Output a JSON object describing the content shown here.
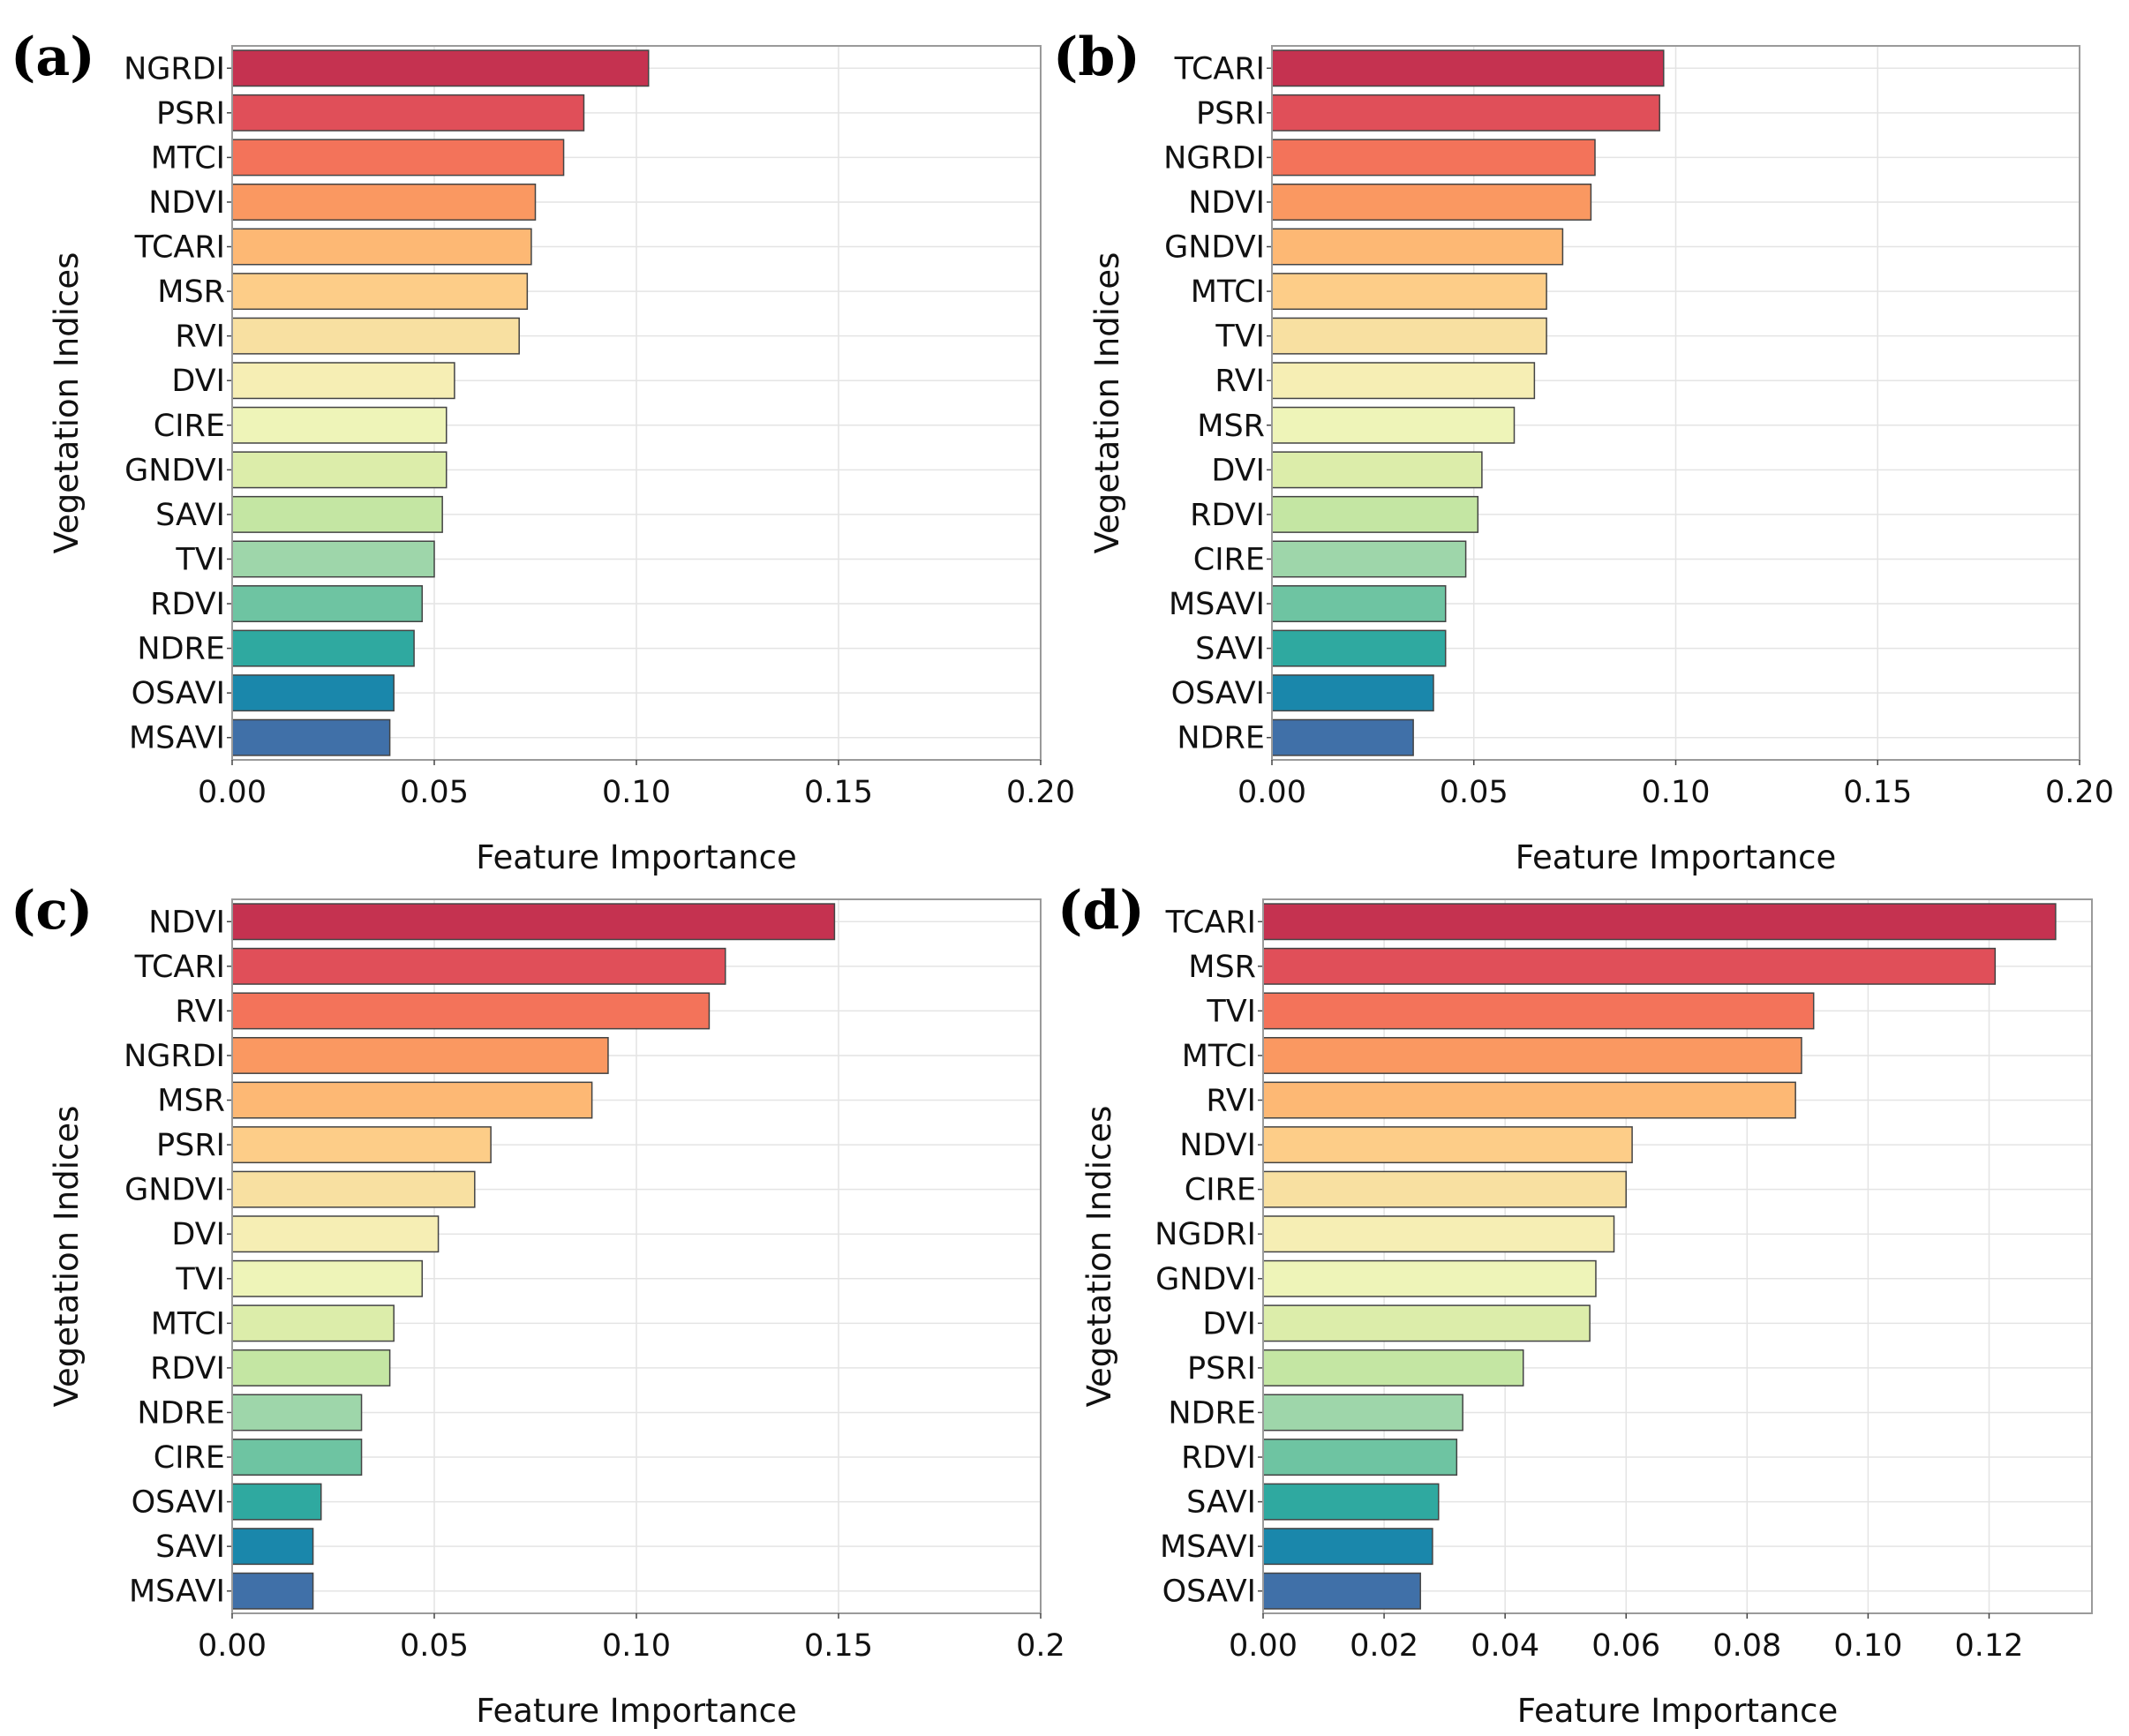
{
  "chart_data": [
    {
      "type": "bar",
      "orientation": "horizontal",
      "panel_label": "(a)",
      "title": "",
      "xlabel": "Feature Importance",
      "ylabel": "Vegetation Indices",
      "xlim": [
        0,
        0.2
      ],
      "x_ticks": [
        0,
        0.05,
        0.1,
        0.15,
        0.2
      ],
      "x_tick_labels": [
        "0.00",
        "0.05",
        "0.10",
        "0.15",
        "0.20"
      ],
      "grid": true,
      "categories": [
        "NGRDI",
        "PSRI",
        "MTCI",
        "NDVI",
        "TCARI",
        "MSR",
        "RVI",
        "DVI",
        "CIRE",
        "GNDVI",
        "SAVI",
        "TVI",
        "RDVI",
        "NDRE",
        "OSAVI",
        "MSAVI"
      ],
      "values": [
        0.103,
        0.087,
        0.082,
        0.075,
        0.074,
        0.073,
        0.071,
        0.055,
        0.053,
        0.053,
        0.052,
        0.05,
        0.047,
        0.045,
        0.04,
        0.039
      ],
      "colors": [
        "#c53250",
        "#e04f59",
        "#f3735a",
        "#fa9861",
        "#fdb874",
        "#fdcd88",
        "#f8e0a1",
        "#f6eeb4",
        "#eef4b8",
        "#dcedaa",
        "#c4e6a3",
        "#9ed6aa",
        "#6ec4a2",
        "#2fa9a0",
        "#1a87ab",
        "#4070a8"
      ]
    },
    {
      "type": "bar",
      "orientation": "horizontal",
      "panel_label": "(b)",
      "title": "",
      "xlabel": "Feature Importance",
      "ylabel": "Vegetation Indices",
      "xlim": [
        0,
        0.2
      ],
      "x_ticks": [
        0,
        0.05,
        0.1,
        0.15,
        0.2
      ],
      "x_tick_labels": [
        "0.00",
        "0.05",
        "0.10",
        "0.15",
        "0.20"
      ],
      "grid": true,
      "categories": [
        "TCARI",
        "PSRI",
        "NGRDI",
        "NDVI",
        "GNDVI",
        "MTCI",
        "TVI",
        "RVI",
        "MSR",
        "DVI",
        "RDVI",
        "CIRE",
        "MSAVI",
        "SAVI",
        "OSAVI",
        "NDRE"
      ],
      "values": [
        0.097,
        0.096,
        0.08,
        0.079,
        0.072,
        0.068,
        0.068,
        0.065,
        0.06,
        0.052,
        0.051,
        0.048,
        0.043,
        0.043,
        0.04,
        0.035
      ],
      "colors": [
        "#c53250",
        "#e04f59",
        "#f3735a",
        "#fa9861",
        "#fdb874",
        "#fdcd88",
        "#f8e0a1",
        "#f6eeb4",
        "#eef4b8",
        "#dcedaa",
        "#c4e6a3",
        "#9ed6aa",
        "#6ec4a2",
        "#2fa9a0",
        "#1a87ab",
        "#4070a8"
      ]
    },
    {
      "type": "bar",
      "orientation": "horizontal",
      "panel_label": "(c)",
      "title": "",
      "xlabel": "Feature Importance",
      "ylabel": "Vegetation Indices",
      "xlim": [
        0,
        0.2
      ],
      "x_ticks": [
        0,
        0.05,
        0.1,
        0.15,
        0.2
      ],
      "x_tick_labels": [
        "0.00",
        "0.05",
        "0.10",
        "0.15",
        "0.2"
      ],
      "grid": true,
      "categories": [
        "NDVI",
        "TCARI",
        "RVI",
        "NGRDI",
        "MSR",
        "PSRI",
        "GNDVI",
        "DVI",
        "TVI",
        "MTCI",
        "RDVI",
        "NDRE",
        "CIRE",
        "OSAVI",
        "SAVI",
        "MSAVI"
      ],
      "values": [
        0.149,
        0.122,
        0.118,
        0.093,
        0.089,
        0.064,
        0.06,
        0.051,
        0.047,
        0.04,
        0.039,
        0.032,
        0.032,
        0.022,
        0.02,
        0.02
      ],
      "colors": [
        "#c53250",
        "#e04f59",
        "#f3735a",
        "#fa9861",
        "#fdb874",
        "#fdcd88",
        "#f8e0a1",
        "#f6eeb4",
        "#eef4b8",
        "#dcedaa",
        "#c4e6a3",
        "#9ed6aa",
        "#6ec4a2",
        "#2fa9a0",
        "#1a87ab",
        "#4070a8"
      ]
    },
    {
      "type": "bar",
      "orientation": "horizontal",
      "panel_label": "(d)",
      "title": "",
      "xlabel": "Feature Importance",
      "ylabel": "Vegetation Indices",
      "xlim": [
        0,
        0.137
      ],
      "x_ticks": [
        0,
        0.02,
        0.04,
        0.06,
        0.08,
        0.1,
        0.12
      ],
      "x_tick_labels": [
        "0.00",
        "0.02",
        "0.04",
        "0.06",
        "0.08",
        "0.10",
        "0.12"
      ],
      "grid": true,
      "categories": [
        "TCARI",
        "MSR",
        "TVI",
        "MTCI",
        "RVI",
        "NDVI",
        "CIRE",
        "NGDRI",
        "GNDVI",
        "DVI",
        "PSRI",
        "NDRE",
        "RDVI",
        "SAVI",
        "MSAVI",
        "OSAVI"
      ],
      "values": [
        0.131,
        0.121,
        0.091,
        0.089,
        0.088,
        0.061,
        0.06,
        0.058,
        0.055,
        0.054,
        0.043,
        0.033,
        0.032,
        0.029,
        0.028,
        0.026
      ],
      "colors": [
        "#c53250",
        "#e04f59",
        "#f3735a",
        "#fa9861",
        "#fdb874",
        "#fdcd88",
        "#f8e0a1",
        "#f6eeb4",
        "#eef4b8",
        "#dcedaa",
        "#c4e6a3",
        "#9ed6aa",
        "#6ec4a2",
        "#2fa9a0",
        "#1a87ab",
        "#4070a8"
      ]
    }
  ]
}
